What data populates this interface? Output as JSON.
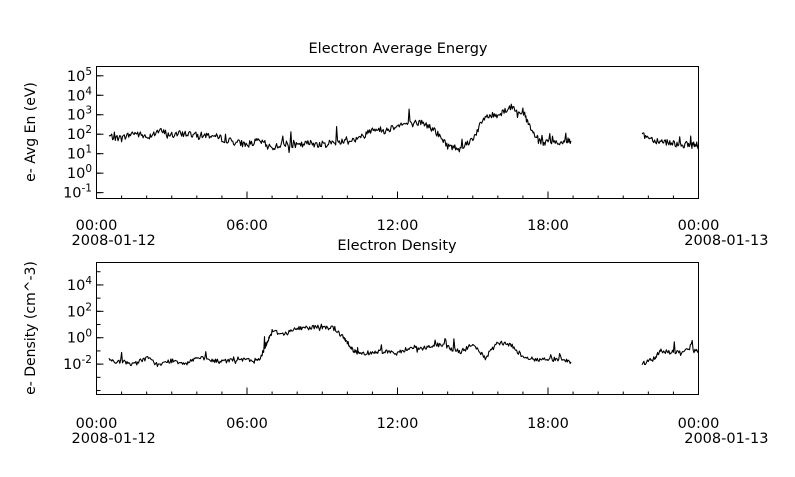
{
  "chart_data": [
    {
      "type": "line",
      "title": "Electron Average Energy",
      "ylabel": "e- Avg En (eV)",
      "y_scale": "log",
      "ylim": [
        0.05,
        300000
      ],
      "grid": false,
      "xlim": [
        "2008-01-12 00:00",
        "2008-01-13 00:00"
      ],
      "x_ticks": [
        {
          "time": "00:00",
          "date": "2008-01-12"
        },
        {
          "time": "06:00",
          "date": ""
        },
        {
          "time": "12:00",
          "date": ""
        },
        {
          "time": "18:00",
          "date": ""
        },
        {
          "time": "00:00",
          "date": "2008-01-13"
        }
      ],
      "y_ticks": [
        {
          "base": "10",
          "exp": "5"
        },
        {
          "base": "10",
          "exp": "4"
        },
        {
          "base": "10",
          "exp": "3"
        },
        {
          "base": "10",
          "exp": "2"
        },
        {
          "base": "10",
          "exp": "1"
        },
        {
          "base": "10",
          "exp": "0"
        },
        {
          "base": "10",
          "exp": "-1"
        }
      ],
      "y_tick_values": [
        100000,
        10000,
        1000,
        100,
        10,
        1,
        0.1
      ],
      "color": "#000000",
      "series": [
        {
          "segments": [
            {
              "x": [
                "2008-01-12 00:30",
                "2008-01-12 01:00",
                "2008-01-12 01:30",
                "2008-01-12 02:00",
                "2008-01-12 02:30",
                "2008-01-12 03:00",
                "2008-01-12 03:30",
                "2008-01-12 04:00",
                "2008-01-12 04:30",
                "2008-01-12 05:00",
                "2008-01-12 05:30",
                "2008-01-12 06:00",
                "2008-01-12 06:30",
                "2008-01-12 07:00",
                "2008-01-12 07:30",
                "2008-01-12 08:00",
                "2008-01-12 08:30",
                "2008-01-12 09:00",
                "2008-01-12 09:30",
                "2008-01-12 10:00",
                "2008-01-12 10:30",
                "2008-01-12 11:00",
                "2008-01-12 11:30",
                "2008-01-12 12:00",
                "2008-01-12 12:30",
                "2008-01-12 13:00",
                "2008-01-12 13:30",
                "2008-01-12 14:00",
                "2008-01-12 14:30",
                "2008-01-12 15:00",
                "2008-01-12 15:30",
                "2008-01-12 16:00",
                "2008-01-12 16:30",
                "2008-01-12 17:00",
                "2008-01-12 17:20",
                "2008-01-12 17:40",
                "2008-01-12 18:00",
                "2008-01-12 18:30",
                "2008-01-12 18:55"
              ],
              "y": [
                80,
                60,
                120,
                70,
                150,
                90,
                110,
                85,
                90,
                60,
                40,
                30,
                45,
                20,
                35,
                25,
                35,
                30,
                40,
                45,
                60,
                200,
                150,
                300,
                350,
                400,
                150,
                25,
                18,
                60,
                800,
                1000,
                2500,
                1500,
                150,
                40,
                35,
                40,
                45
              ]
            },
            {
              "x": [
                "2008-01-12 21:45",
                "2008-01-12 22:15",
                "2008-01-12 22:45",
                "2008-01-12 23:15",
                "2008-01-12 23:40",
                "2008-01-13 00:00"
              ],
              "y": [
                100,
                50,
                40,
                30,
                28,
                28
              ]
            }
          ]
        }
      ]
    },
    {
      "type": "line",
      "title": "Electron Density",
      "ylabel": "e- Density (cm^-3)",
      "y_scale": "log",
      "ylim": [
        5e-05,
        500000
      ],
      "grid": false,
      "xlim": [
        "2008-01-12 00:00",
        "2008-01-13 00:00"
      ],
      "x_ticks": [
        {
          "time": "00:00",
          "date": "2008-01-12"
        },
        {
          "time": "06:00",
          "date": ""
        },
        {
          "time": "12:00",
          "date": ""
        },
        {
          "time": "18:00",
          "date": ""
        },
        {
          "time": "00:00",
          "date": "2008-01-13"
        }
      ],
      "y_ticks": [
        {
          "base": "10",
          "exp": "4"
        },
        {
          "base": "10",
          "exp": "2"
        },
        {
          "base": "10",
          "exp": "0"
        },
        {
          "base": "10",
          "exp": "-2"
        }
      ],
      "y_tick_values": [
        10000,
        100,
        1,
        0.01
      ],
      "color": "#000000",
      "series": [
        {
          "segments": [
            {
              "x": [
                "2008-01-12 00:30",
                "2008-01-12 01:00",
                "2008-01-12 01:30",
                "2008-01-12 02:00",
                "2008-01-12 02:30",
                "2008-01-12 03:00",
                "2008-01-12 03:30",
                "2008-01-12 04:00",
                "2008-01-12 04:30",
                "2008-01-12 05:00",
                "2008-01-12 05:30",
                "2008-01-12 06:00",
                "2008-01-12 06:30",
                "2008-01-12 06:45",
                "2008-01-12 07:00",
                "2008-01-12 07:30",
                "2008-01-12 08:00",
                "2008-01-12 08:30",
                "2008-01-12 09:00",
                "2008-01-12 09:30",
                "2008-01-12 09:50",
                "2008-01-12 10:00",
                "2008-01-12 10:15",
                "2008-01-12 10:30",
                "2008-01-12 11:00",
                "2008-01-12 11:30",
                "2008-01-12 12:00",
                "2008-01-12 12:30",
                "2008-01-12 13:00",
                "2008-01-12 13:30",
                "2008-01-12 14:00",
                "2008-01-12 14:30",
                "2008-01-12 15:00",
                "2008-01-12 15:30",
                "2008-01-12 16:00",
                "2008-01-12 16:30",
                "2008-01-12 17:00",
                "2008-01-12 17:30",
                "2008-01-12 18:00",
                "2008-01-12 18:30",
                "2008-01-12 18:55"
              ],
              "y": [
                0.02,
                0.015,
                0.01,
                0.03,
                0.008,
                0.02,
                0.012,
                0.03,
                0.02,
                0.015,
                0.025,
                0.02,
                0.02,
                0.3,
                3,
                2,
                5,
                6,
                7,
                5,
                1,
                0.5,
                0.1,
                0.06,
                0.08,
                0.1,
                0.06,
                0.2,
                0.15,
                0.3,
                0.2,
                0.08,
                0.3,
                0.03,
                0.4,
                0.3,
                0.04,
                0.02,
                0.025,
                0.02,
                0.015
              ]
            },
            {
              "x": [
                "2008-01-12 21:45",
                "2008-01-12 22:15",
                "2008-01-12 22:30",
                "2008-01-12 23:00",
                "2008-01-12 23:30",
                "2008-01-13 00:00"
              ],
              "y": [
                0.01,
                0.03,
                0.1,
                0.08,
                0.1,
                0.1
              ]
            }
          ]
        }
      ]
    }
  ]
}
